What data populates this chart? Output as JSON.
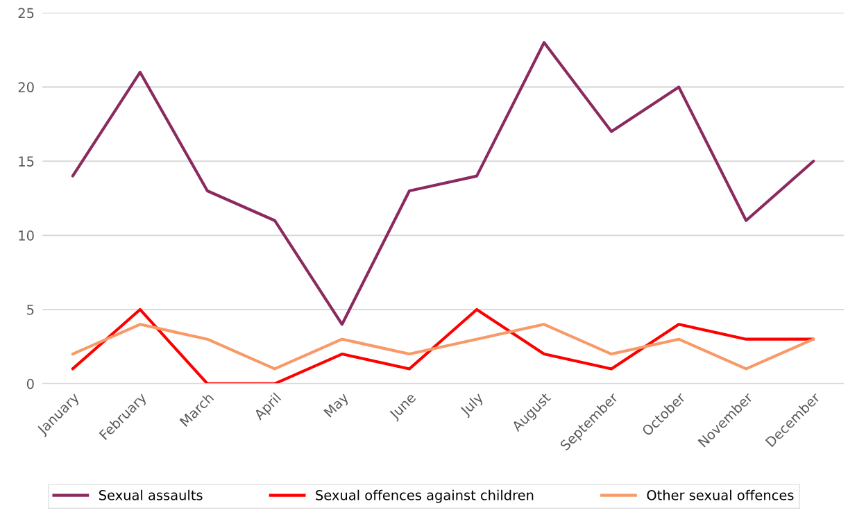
{
  "chart_data": {
    "type": "line",
    "categories": [
      "January",
      "February",
      "March",
      "April",
      "May",
      "June",
      "July",
      "August",
      "September",
      "October",
      "November",
      "December"
    ],
    "series": [
      {
        "name": "Sexual assaults",
        "color": "#8b2a5f",
        "values": [
          14,
          21,
          13,
          11,
          4,
          13,
          14,
          23,
          17,
          20,
          11,
          15
        ]
      },
      {
        "name": "Sexual offences against children",
        "color": "#ff0000",
        "values": [
          1,
          5,
          0,
          0,
          2,
          1,
          5,
          2,
          1,
          4,
          3,
          3
        ]
      },
      {
        "name": "Other sexual offences",
        "color": "#f79a68",
        "values": [
          2,
          4,
          3,
          1,
          3,
          2,
          3,
          4,
          2,
          3,
          1,
          3
        ]
      }
    ],
    "ylim": [
      0,
      25
    ],
    "yticks": [
      0,
      5,
      10,
      15,
      20,
      25
    ],
    "grid": "y",
    "legend": "bottom",
    "marker": "none",
    "line_style": "solid"
  }
}
